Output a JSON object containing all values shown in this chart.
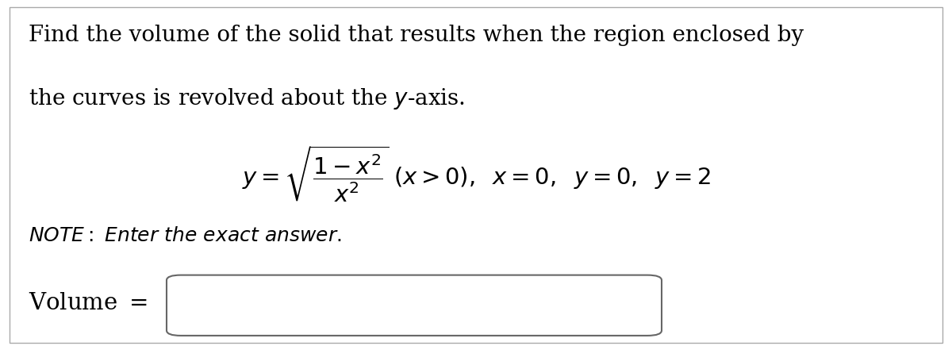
{
  "bg_color": "#ffffff",
  "text_line1": "Find the volume of the solid that results when the region enclosed by",
  "text_line2": "the curves is revolved about the $y$-axis.",
  "formula": "$y = \\sqrt{\\dfrac{1 - x^2}{x^2}}\\;(x > 0),\\; x = 0,\\; y = 0,\\; y = 2$",
  "note_italic": "$\\mathit{NOTE}$: $\\mathit{Enter\\ the\\ exact\\ answer.}$",
  "volume_label": "Volume $=$",
  "font_size_main": 20,
  "font_size_formula": 21,
  "font_size_note": 18,
  "font_size_volume": 21,
  "border_color": "#aaaaaa",
  "box_edge_color": "#666666"
}
